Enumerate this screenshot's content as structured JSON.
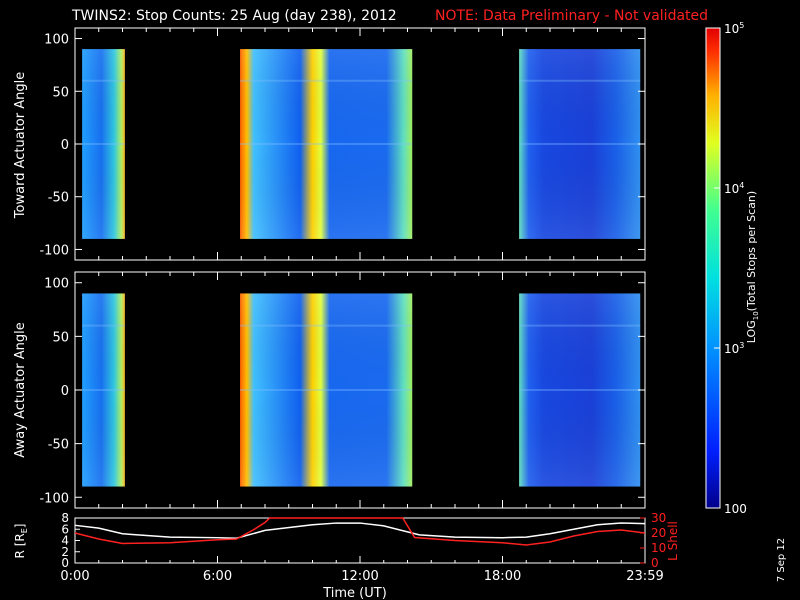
{
  "title": "TWINS2: Stop Counts: 25 Aug (day 238), 2012",
  "note": "NOTE: Data Preliminary - Not validated",
  "date_stamp": "7 Sep 12",
  "colors": {
    "background": "#000000",
    "axes": "#ffffff",
    "note": "#ff2020",
    "lshell": "#ff2020",
    "radius": "#ffffff"
  },
  "chart_data": [
    {
      "type": "heatmap",
      "panel": "top",
      "ylabel": "Toward Actuator Angle",
      "xlim": [
        0,
        24
      ],
      "ylim": [
        -110,
        110
      ],
      "yticks": [
        -100,
        -50,
        0,
        50,
        100
      ],
      "data_y_range": [
        -90,
        90
      ],
      "data_segments": [
        {
          "start": 0.3,
          "end": 2.1
        },
        {
          "start": 6.95,
          "end": 14.2
        },
        {
          "start": 18.7,
          "end": 23.8
        }
      ]
    },
    {
      "type": "heatmap",
      "panel": "middle",
      "ylabel": "Away Actuator Angle",
      "xlim": [
        0,
        24
      ],
      "ylim": [
        -110,
        110
      ],
      "yticks": [
        -100,
        -50,
        0,
        50,
        100
      ],
      "data_y_range": [
        -90,
        90
      ],
      "data_segments": [
        {
          "start": 0.3,
          "end": 2.1
        },
        {
          "start": 6.95,
          "end": 14.2
        },
        {
          "start": 18.7,
          "end": 23.8
        }
      ]
    },
    {
      "type": "line",
      "panel": "bottom",
      "xlabel": "Time (UT)",
      "ylabel_left": "R [RE]",
      "ylabel_left_sub": "E",
      "ylabel_right": "L Shell",
      "xlim": [
        0,
        24
      ],
      "xticks": [
        {
          "value": 0,
          "label": "0:00"
        },
        {
          "value": 6,
          "label": "6:00"
        },
        {
          "value": 12,
          "label": "12:00"
        },
        {
          "value": 18,
          "label": "18:00"
        },
        {
          "value": 24,
          "label": "23:59"
        }
      ],
      "ylim_left": [
        0,
        8
      ],
      "yticks_left": [
        0,
        2,
        4,
        6,
        8
      ],
      "ylim_right": [
        0,
        30
      ],
      "yticks_right": [
        0,
        10,
        20,
        30
      ],
      "series": [
        {
          "axis": "left",
          "color": "#ffffff",
          "x": [
            0,
            1,
            2,
            4,
            6,
            6.8,
            8,
            10,
            11,
            12,
            13,
            14.5,
            16,
            18,
            19,
            20,
            21,
            22,
            23,
            23.99
          ],
          "y": [
            6.7,
            6.2,
            5.2,
            4.6,
            4.5,
            4.4,
            5.8,
            6.8,
            7.1,
            7.1,
            6.6,
            5.0,
            4.6,
            4.5,
            4.6,
            5.2,
            6.0,
            6.8,
            7.1,
            7.0
          ]
        },
        {
          "axis": "right",
          "color": "#ff2020",
          "x": [
            0,
            1,
            2,
            4,
            6,
            6.8,
            7.5,
            8.0,
            8.2,
            13.8,
            14.3,
            16,
            18,
            19,
            20,
            21,
            22,
            23,
            23.99
          ],
          "y": [
            20,
            16,
            13,
            13.5,
            15.5,
            16,
            22,
            27,
            31,
            31,
            17,
            15,
            13.5,
            12,
            14,
            18,
            21,
            22,
            20
          ]
        }
      ]
    },
    {
      "type": "colorbar",
      "label": "LOG10(Total Stops per Scan)",
      "ticks": [
        {
          "value": 100,
          "label": "100"
        },
        {
          "value": 1000,
          "label": "10^3"
        },
        {
          "value": 10000,
          "label": "10^4"
        },
        {
          "value": 100000,
          "label": "10^5"
        }
      ],
      "range": [
        100,
        100000
      ],
      "scale": "log"
    }
  ]
}
